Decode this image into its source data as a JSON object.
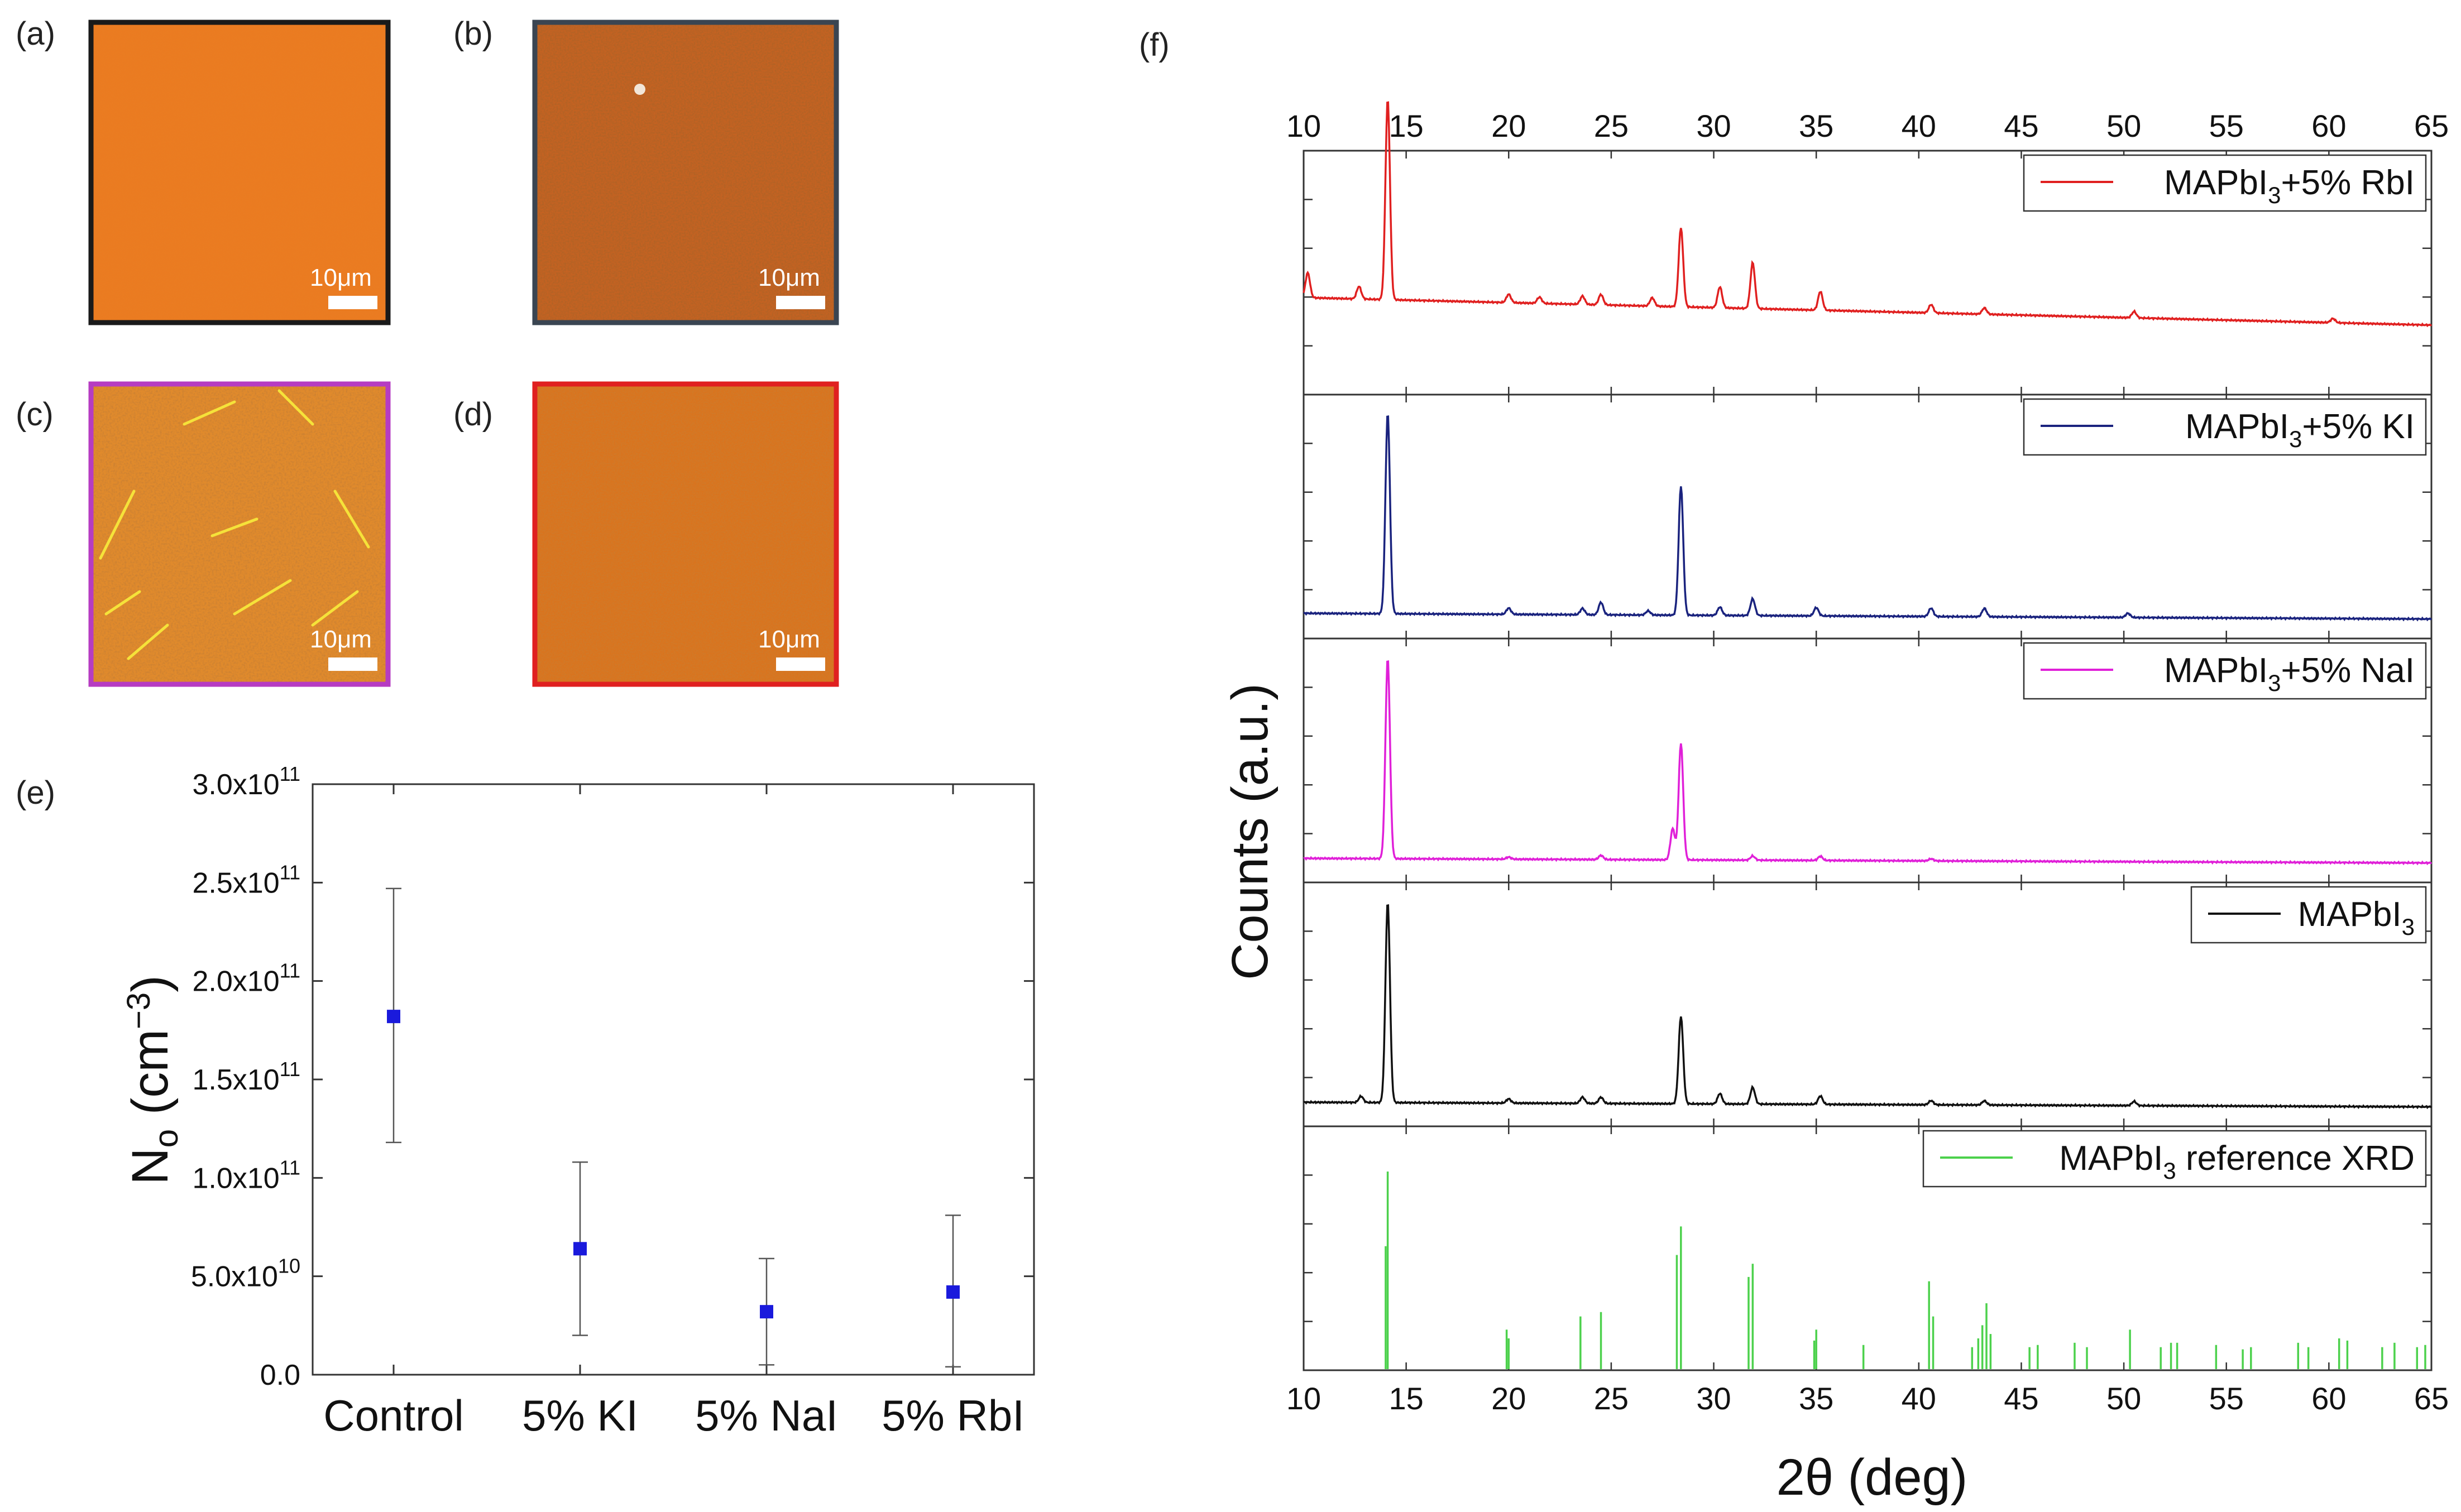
{
  "panels": {
    "a": "(a)",
    "b": "(b)",
    "c": "(c)",
    "d": "(d)",
    "e": "(e)",
    "f": "(f)"
  },
  "afm": {
    "scale_bar": "10μm",
    "images": [
      {
        "id": "a",
        "base": "#ee7a1e",
        "border": "#1a1a1a"
      },
      {
        "id": "b",
        "base": "#c46222",
        "border": "#3a4552"
      },
      {
        "id": "c",
        "base": "#e08a2c",
        "border": "#b63cc2"
      },
      {
        "id": "d",
        "base": "#d9741e",
        "border": "#e02020"
      }
    ]
  },
  "chart_data": [
    {
      "type": "scatter",
      "panel": "e",
      "categories": [
        "Control",
        "5% KI",
        "5% NaI",
        "5% RbI"
      ],
      "values": [
        182000000000.0,
        64000000000.0,
        32000000000.0,
        42000000000.0
      ],
      "error_low": [
        118000000000.0,
        20000000000.0,
        5000000000.0,
        4000000000.0
      ],
      "error_high": [
        247000000000.0,
        108000000000.0,
        59000000000.0,
        81000000000.0
      ],
      "ylabel_main": "N",
      "ylabel_sub": "o",
      "ylabel_unit_open": " (cm",
      "ylabel_sup": "−3",
      "ylabel_close": ")",
      "ylim": [
        0,
        300000000000.0
      ],
      "yticks": [
        {
          "v": 0,
          "label": "0.0"
        },
        {
          "v": 50000000000.0,
          "label": "5.0x10",
          "exp": "10"
        },
        {
          "v": 100000000000.0,
          "label": "1.0x10",
          "exp": "11"
        },
        {
          "v": 150000000000.0,
          "label": "1.5x10",
          "exp": "11"
        },
        {
          "v": 200000000000.0,
          "label": "2.0x10",
          "exp": "11"
        },
        {
          "v": 250000000000.0,
          "label": "2.5x10",
          "exp": "11"
        },
        {
          "v": 300000000000.0,
          "label": "3.0x10",
          "exp": "11"
        }
      ],
      "marker_color": "#1a1adc"
    },
    {
      "type": "line",
      "panel": "f",
      "xlabel": "2θ (deg)",
      "ylabel": "Counts (a.u.)",
      "xlim": [
        10,
        65
      ],
      "xticks": [
        "10",
        "15",
        "20",
        "25",
        "30",
        "35",
        "40",
        "45",
        "50",
        "55",
        "60",
        "65"
      ],
      "series": [
        {
          "legend_pre": "MAPbI",
          "legend_sub": "3",
          "legend_post": "+5% RbI",
          "color": "#e02020",
          "baseline": 0.28,
          "slope": 0.0024,
          "peaks": [
            [
              10.2,
              0.12
            ],
            [
              12.7,
              0.06
            ],
            [
              14.1,
              0.96
            ],
            [
              20.0,
              0.04
            ],
            [
              21.5,
              0.03
            ],
            [
              23.6,
              0.04
            ],
            [
              24.5,
              0.05
            ],
            [
              27.0,
              0.04
            ],
            [
              28.4,
              0.38
            ],
            [
              30.3,
              0.1
            ],
            [
              31.9,
              0.22
            ],
            [
              35.2,
              0.09
            ],
            [
              40.6,
              0.04
            ],
            [
              43.2,
              0.03
            ],
            [
              50.5,
              0.03
            ],
            [
              60.2,
              0.02
            ]
          ]
        },
        {
          "legend_pre": "MAPbI",
          "legend_sub": "3",
          "legend_post": "+5% KI",
          "color": "#1a237e",
          "baseline": 0.04,
          "slope": 0.0005,
          "peaks": [
            [
              14.1,
              0.96
            ],
            [
              20.0,
              0.03
            ],
            [
              23.6,
              0.03
            ],
            [
              24.5,
              0.06
            ],
            [
              26.8,
              0.02
            ],
            [
              28.4,
              0.62
            ],
            [
              30.3,
              0.04
            ],
            [
              31.9,
              0.08
            ],
            [
              35.0,
              0.04
            ],
            [
              40.6,
              0.04
            ],
            [
              43.2,
              0.04
            ],
            [
              50.2,
              0.02
            ]
          ]
        },
        {
          "legend_pre": "MAPbI",
          "legend_sub": "3",
          "legend_post": "+5% NaI",
          "color": "#e020d8",
          "baseline": 0.04,
          "slope": 0.0004,
          "peaks": [
            [
              14.1,
              0.96
            ],
            [
              20.0,
              0.01
            ],
            [
              24.5,
              0.02
            ],
            [
              28.0,
              0.15
            ],
            [
              28.4,
              0.56
            ],
            [
              31.9,
              0.02
            ],
            [
              35.2,
              0.02
            ],
            [
              40.6,
              0.01
            ]
          ]
        },
        {
          "legend_pre": "MAPbI",
          "legend_sub": "3",
          "legend_post": "",
          "color": "#111111",
          "baseline": 0.04,
          "slope": 0.0004,
          "peaks": [
            [
              12.8,
              0.03
            ],
            [
              14.1,
              0.96
            ],
            [
              20.0,
              0.02
            ],
            [
              23.6,
              0.03
            ],
            [
              24.5,
              0.03
            ],
            [
              28.4,
              0.42
            ],
            [
              30.3,
              0.05
            ],
            [
              31.9,
              0.08
            ],
            [
              35.2,
              0.04
            ],
            [
              40.6,
              0.02
            ],
            [
              43.2,
              0.02
            ],
            [
              50.5,
              0.02
            ]
          ]
        }
      ],
      "reference": {
        "legend_pre": "MAPbI",
        "legend_sub": "3",
        "legend_post": " reference XRD",
        "color": "#4cd14c",
        "sticks": [
          [
            14.0,
            0.56
          ],
          [
            14.1,
            0.9
          ],
          [
            19.9,
            0.18
          ],
          [
            20.0,
            0.14
          ],
          [
            23.5,
            0.24
          ],
          [
            24.5,
            0.26
          ],
          [
            28.2,
            0.52
          ],
          [
            28.4,
            0.65
          ],
          [
            31.7,
            0.42
          ],
          [
            31.9,
            0.48
          ],
          [
            34.9,
            0.13
          ],
          [
            35.0,
            0.18
          ],
          [
            37.3,
            0.11
          ],
          [
            40.5,
            0.4
          ],
          [
            40.7,
            0.24
          ],
          [
            42.6,
            0.1
          ],
          [
            42.9,
            0.14
          ],
          [
            43.1,
            0.2
          ],
          [
            43.3,
            0.3
          ],
          [
            43.5,
            0.16
          ],
          [
            45.4,
            0.1
          ],
          [
            45.8,
            0.11
          ],
          [
            47.6,
            0.12
          ],
          [
            48.2,
            0.1
          ],
          [
            50.3,
            0.18
          ],
          [
            51.8,
            0.1
          ],
          [
            52.3,
            0.12
          ],
          [
            52.6,
            0.12
          ],
          [
            54.5,
            0.11
          ],
          [
            55.8,
            0.09
          ],
          [
            56.2,
            0.1
          ],
          [
            58.5,
            0.12
          ],
          [
            59.0,
            0.1
          ],
          [
            60.5,
            0.14
          ],
          [
            60.9,
            0.13
          ],
          [
            62.6,
            0.1
          ],
          [
            63.2,
            0.12
          ],
          [
            64.3,
            0.1
          ],
          [
            64.7,
            0.11
          ]
        ]
      }
    }
  ]
}
